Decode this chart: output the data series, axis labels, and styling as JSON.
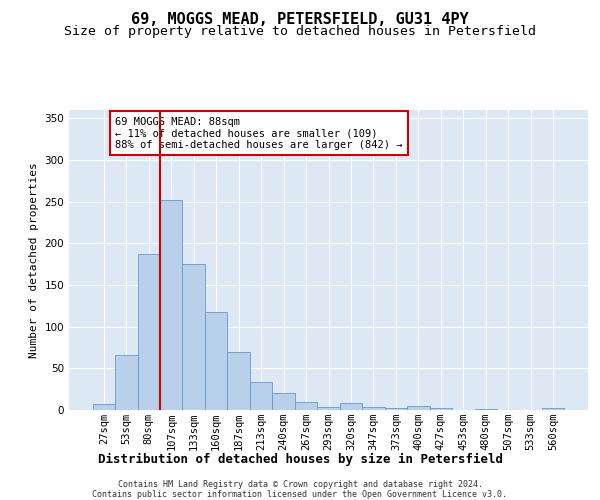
{
  "title": "69, MOGGS MEAD, PETERSFIELD, GU31 4PY",
  "subtitle": "Size of property relative to detached houses in Petersfield",
  "xlabel": "Distribution of detached houses by size in Petersfield",
  "ylabel": "Number of detached properties",
  "bar_labels": [
    "27sqm",
    "53sqm",
    "80sqm",
    "107sqm",
    "133sqm",
    "160sqm",
    "187sqm",
    "213sqm",
    "240sqm",
    "267sqm",
    "293sqm",
    "320sqm",
    "347sqm",
    "373sqm",
    "400sqm",
    "427sqm",
    "453sqm",
    "480sqm",
    "507sqm",
    "533sqm",
    "560sqm"
  ],
  "bar_values": [
    7,
    66,
    187,
    252,
    175,
    118,
    70,
    34,
    21,
    10,
    4,
    8,
    4,
    3,
    5,
    3,
    0,
    1,
    0,
    0,
    2
  ],
  "bar_color": "#b8d0ea",
  "bar_edge_color": "#6699cc",
  "vline_x_index": 2.5,
  "vline_color": "#cc0000",
  "annotation_text": "69 MOGGS MEAD: 88sqm\n← 11% of detached houses are smaller (109)\n88% of semi-detached houses are larger (842) →",
  "annotation_box_color": "#cc0000",
  "footnote": "Contains HM Land Registry data © Crown copyright and database right 2024.\nContains public sector information licensed under the Open Government Licence v3.0.",
  "ylim": [
    0,
    360
  ],
  "yticks": [
    0,
    50,
    100,
    150,
    200,
    250,
    300,
    350
  ],
  "background_color": "#dde8f5",
  "grid_color": "#ffffff",
  "title_fontsize": 11,
  "subtitle_fontsize": 9.5,
  "xlabel_fontsize": 9,
  "ylabel_fontsize": 8,
  "tick_fontsize": 7.5,
  "annotation_fontsize": 7.5,
  "footnote_fontsize": 6
}
